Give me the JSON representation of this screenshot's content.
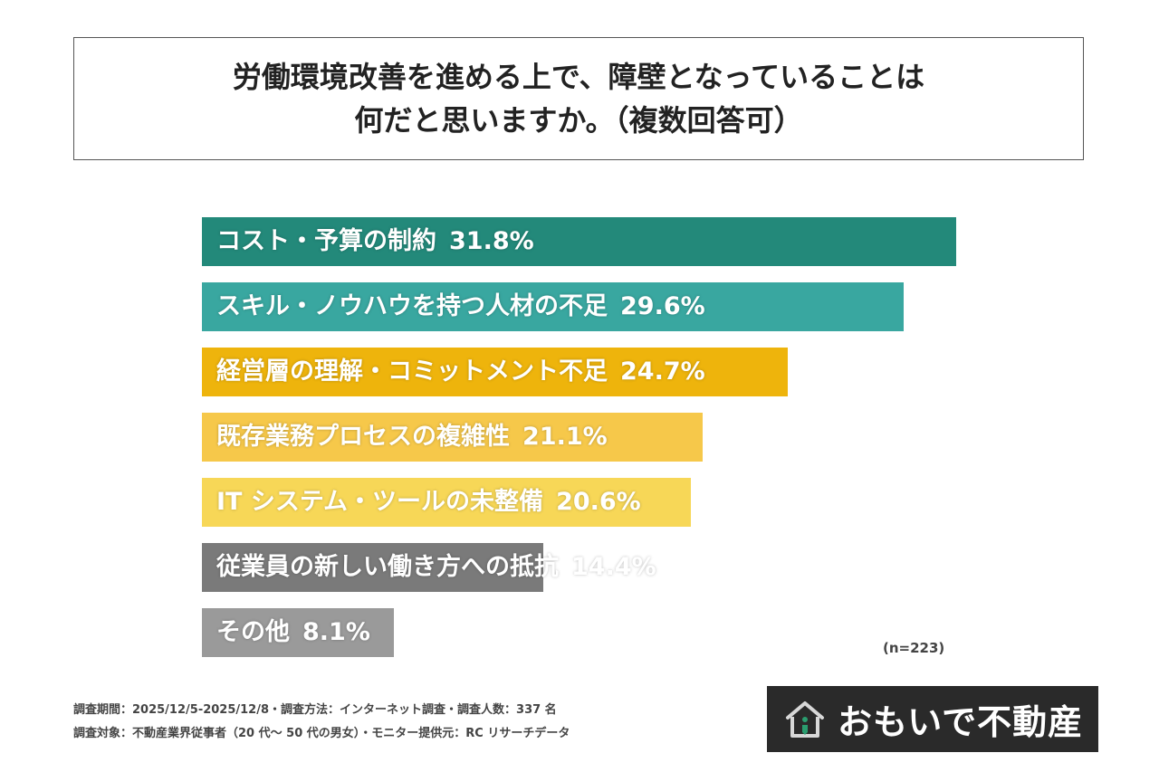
{
  "title": {
    "line1": "労働環境改善を進める上で、障壁となっていることは",
    "line2": "何だと思いますか。（複数回答可）"
  },
  "chart_data": {
    "type": "bar",
    "orientation": "horizontal",
    "categories": [
      "コスト・予算の制約",
      "スキル・ノウハウを持つ人材の不足",
      "経営層の理解・コミットメント不足",
      "既存業務プロセスの複雑性",
      "IT システム・ツールの未整備",
      "従業員の新しい働き方への抵抗",
      "その他"
    ],
    "values": [
      31.8,
      29.6,
      24.7,
      21.1,
      20.6,
      14.4,
      8.1
    ],
    "value_labels": [
      "31.8%",
      "29.6%",
      "24.7%",
      "21.1%",
      "20.6%",
      "14.4%",
      "8.1%"
    ],
    "colors": [
      "#23897a",
      "#39a7a0",
      "#eeb40c",
      "#f6c84a",
      "#f7d757",
      "#7a7a7a",
      "#9a9a9a"
    ],
    "xlim": [
      0,
      31.8
    ],
    "grid": false,
    "legend": "none"
  },
  "n_label": "(n=223)",
  "footer": {
    "line1": "調査期間：2025/12/5-2025/12/8・調査方法：インターネット調査・調査人数：337 名",
    "line2": "調査対象：不動産業界従事者（20 代〜 50 代の男女）・モニター提供元：RC リサーチデータ"
  },
  "logo": {
    "text": "おもいで不動産",
    "icon": "house-icon",
    "bg_color": "#2a2a2a",
    "accent_color": "#2a9d6f"
  }
}
